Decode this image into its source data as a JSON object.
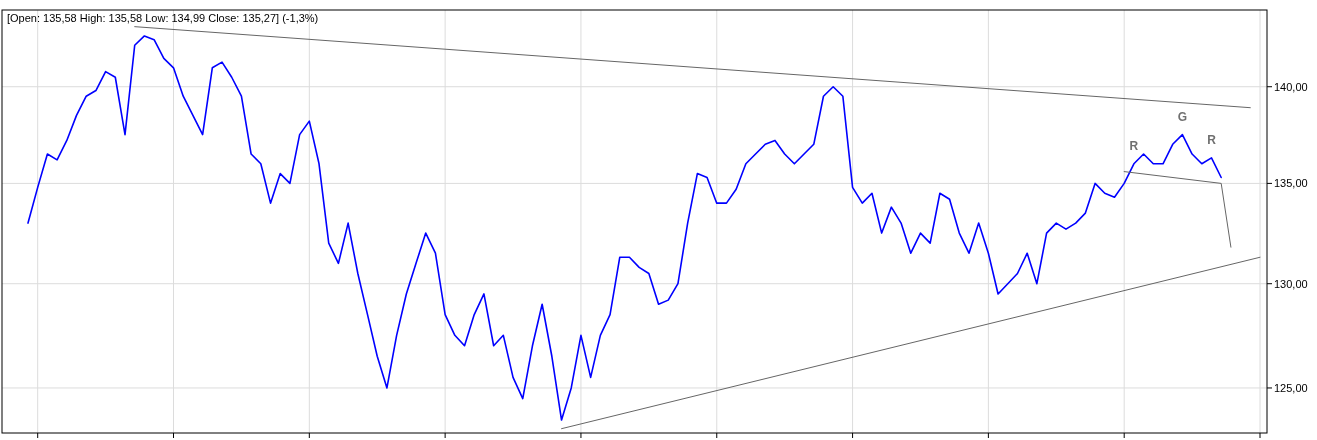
{
  "chart_data": {
    "type": "line",
    "title": "[Open: 135,58  High: 135,58  Low: 134,99  Close: 135,27] (-1,3%)",
    "log": "y",
    "grid": true,
    "categories": [
      null,
      null,
      null,
      null,
      null,
      null,
      null,
      null,
      null,
      null,
      null,
      null,
      null,
      null,
      null,
      null,
      null,
      null,
      null,
      null,
      null,
      null,
      null,
      null,
      null,
      null,
      null,
      null,
      null,
      null,
      null,
      null,
      null,
      null,
      null,
      null,
      null,
      null,
      null,
      null,
      null,
      null,
      null,
      null,
      null,
      null,
      null,
      null,
      null,
      null,
      null,
      null,
      null,
      null,
      null,
      null,
      null,
      null,
      null,
      null,
      null,
      null,
      null,
      null,
      null,
      null,
      null,
      null,
      null,
      null,
      null,
      null,
      null,
      null,
      null,
      null,
      null,
      null,
      null,
      null,
      null,
      null,
      null,
      null,
      null,
      null,
      null,
      null,
      null,
      null,
      null,
      null,
      null,
      null,
      null,
      null,
      null,
      null,
      null,
      null,
      null,
      null,
      null,
      null,
      null,
      null,
      null,
      null,
      null,
      null,
      null,
      null,
      null,
      null,
      null,
      null,
      null,
      null,
      null,
      null,
      null,
      null,
      null,
      null,
      null,
      null,
      null,
      null
    ],
    "ylim": [
      122.9,
      144.1
    ],
    "yticks": [
      {
        "value": 125,
        "label": "125,00"
      },
      {
        "value": 130,
        "label": "130,00"
      },
      {
        "value": 135,
        "label": "135,00"
      },
      {
        "value": 140,
        "label": "140,00"
      }
    ],
    "series": [
      {
        "color": "#0000ff",
        "values": [
          133,
          134.8,
          136.5,
          136.2,
          137.2,
          138.5,
          139.5,
          139.8,
          140.8,
          140.5,
          137.5,
          142.2,
          142.7,
          142.5,
          141.5,
          141,
          139.5,
          138.5,
          137.5,
          141,
          141.3,
          140.5,
          139.5,
          136.5,
          136,
          134,
          135.5,
          135,
          137.5,
          138.2,
          136,
          132,
          131,
          133,
          130.5,
          128.5,
          126.5,
          125,
          127.5,
          129.5,
          131,
          132.5,
          131.5,
          128.5,
          127.5,
          127,
          128.5,
          129.5,
          127,
          127.5,
          125.5,
          124.5,
          127,
          129,
          126.5,
          123.5,
          125,
          127.5,
          125.5,
          127.5,
          128.5,
          131.3,
          131.3,
          130.8,
          130.5,
          129,
          129.2,
          130,
          133,
          135.5,
          135.3,
          134,
          134,
          134.7,
          136,
          136.5,
          137,
          137.2,
          136.5,
          136,
          136.5,
          137,
          139.5,
          140,
          139.5,
          134.8,
          134,
          134.5,
          132.5,
          133.8,
          133,
          131.5,
          132.5,
          132,
          134.5,
          134.2,
          132.5,
          131.5,
          133,
          131.5,
          129.5,
          130,
          130.5,
          131.5,
          130,
          132.5,
          133,
          132.7,
          133,
          133.5,
          135,
          134.5,
          134.3,
          135,
          136,
          136.5,
          136,
          136,
          137,
          137.5,
          136.5,
          136,
          136.3,
          135.3,
          null,
          null,
          null,
          null
        ],
        "value_labels": [
          null,
          null,
          null,
          null,
          null,
          null,
          null,
          null,
          null,
          null,
          null,
          null,
          null,
          null,
          null,
          null,
          null,
          null,
          null,
          null,
          null,
          null,
          null,
          null,
          null,
          null,
          null,
          null,
          null,
          null,
          null,
          null,
          null,
          null,
          null,
          null,
          null,
          null,
          null,
          null,
          null,
          null,
          null,
          null,
          null,
          null,
          null,
          null,
          null,
          null,
          null,
          null,
          null,
          null,
          null,
          null,
          null,
          null,
          null,
          null,
          null,
          null,
          null,
          null,
          null,
          null,
          null,
          null,
          null,
          null,
          null,
          null,
          null,
          null,
          null,
          null,
          null,
          null,
          null,
          null,
          null,
          null,
          null,
          null,
          null,
          null,
          null,
          null,
          null,
          null,
          null,
          null,
          null,
          null,
          null,
          null,
          null,
          null,
          null,
          null,
          null,
          null,
          null,
          null,
          null,
          null,
          null,
          null,
          null,
          null,
          null,
          null,
          null,
          null,
          "R",
          null,
          null,
          null,
          null,
          "G",
          null,
          null,
          "R",
          null,
          null,
          null,
          null,
          null
        ]
      },
      {
        "color": "#666666",
        "values": [
          null,
          null,
          null,
          null,
          null,
          null,
          null,
          null,
          null,
          null,
          null,
          143.2,
          null,
          null,
          null,
          null,
          null,
          null,
          null,
          null,
          null,
          null,
          null,
          null,
          null,
          null,
          null,
          null,
          null,
          null,
          null,
          null,
          null,
          null,
          null,
          null,
          null,
          null,
          null,
          null,
          null,
          null,
          null,
          null,
          null,
          null,
          null,
          null,
          null,
          null,
          null,
          null,
          null,
          null,
          null,
          null,
          null,
          null,
          null,
          null,
          null,
          null,
          null,
          null,
          null,
          null,
          null,
          null,
          null,
          null,
          null,
          null,
          null,
          null,
          null,
          null,
          null,
          null,
          null,
          null,
          null,
          null,
          null,
          null,
          null,
          null,
          null,
          null,
          null,
          null,
          null,
          null,
          null,
          null,
          null,
          null,
          null,
          null,
          null,
          null,
          null,
          null,
          null,
          null,
          null,
          null,
          null,
          null,
          null,
          null,
          null,
          null,
          null,
          null,
          null,
          null,
          null,
          null,
          null,
          null,
          null,
          null,
          null,
          null,
          null,
          null,
          138.9,
          null
        ]
      },
      {
        "color": "#666666",
        "values": [
          null,
          null,
          null,
          null,
          null,
          null,
          null,
          null,
          null,
          null,
          null,
          null,
          null,
          null,
          null,
          null,
          null,
          null,
          null,
          null,
          null,
          null,
          null,
          null,
          null,
          null,
          null,
          null,
          null,
          null,
          null,
          null,
          null,
          null,
          null,
          null,
          null,
          null,
          null,
          null,
          null,
          null,
          null,
          null,
          null,
          null,
          null,
          null,
          null,
          null,
          null,
          null,
          null,
          null,
          null,
          123.1,
          null,
          null,
          null,
          null,
          null,
          null,
          null,
          null,
          null,
          null,
          null,
          null,
          null,
          null,
          null,
          null,
          null,
          null,
          null,
          null,
          null,
          null,
          null,
          null,
          null,
          null,
          null,
          null,
          null,
          null,
          null,
          null,
          null,
          null,
          null,
          null,
          null,
          null,
          null,
          null,
          null,
          null,
          null,
          null,
          null,
          null,
          null,
          null,
          null,
          null,
          null,
          null,
          null,
          null,
          null,
          null,
          null,
          null,
          null,
          null,
          null,
          null,
          null,
          null,
          null,
          null,
          null,
          null,
          null,
          null,
          null,
          131.3
        ]
      },
      {
        "color": "#666666",
        "values": [
          null,
          null,
          null,
          null,
          null,
          null,
          null,
          null,
          null,
          null,
          null,
          null,
          null,
          null,
          null,
          null,
          null,
          null,
          null,
          null,
          null,
          null,
          null,
          null,
          null,
          null,
          null,
          null,
          null,
          null,
          null,
          null,
          null,
          null,
          null,
          null,
          null,
          null,
          null,
          null,
          null,
          null,
          null,
          null,
          null,
          null,
          null,
          null,
          null,
          null,
          null,
          null,
          null,
          null,
          null,
          null,
          null,
          null,
          null,
          null,
          null,
          null,
          null,
          null,
          null,
          null,
          null,
          null,
          null,
          null,
          null,
          null,
          null,
          null,
          null,
          null,
          null,
          null,
          null,
          null,
          null,
          null,
          null,
          null,
          null,
          null,
          null,
          null,
          null,
          null,
          null,
          null,
          null,
          null,
          null,
          null,
          null,
          null,
          null,
          null,
          null,
          null,
          null,
          null,
          null,
          null,
          null,
          null,
          null,
          null,
          null,
          null,
          null,
          135.6,
          null,
          null,
          null,
          null,
          null,
          null,
          null,
          null,
          null,
          135.0,
          131.8,
          null,
          null,
          null
        ]
      }
    ]
  }
}
